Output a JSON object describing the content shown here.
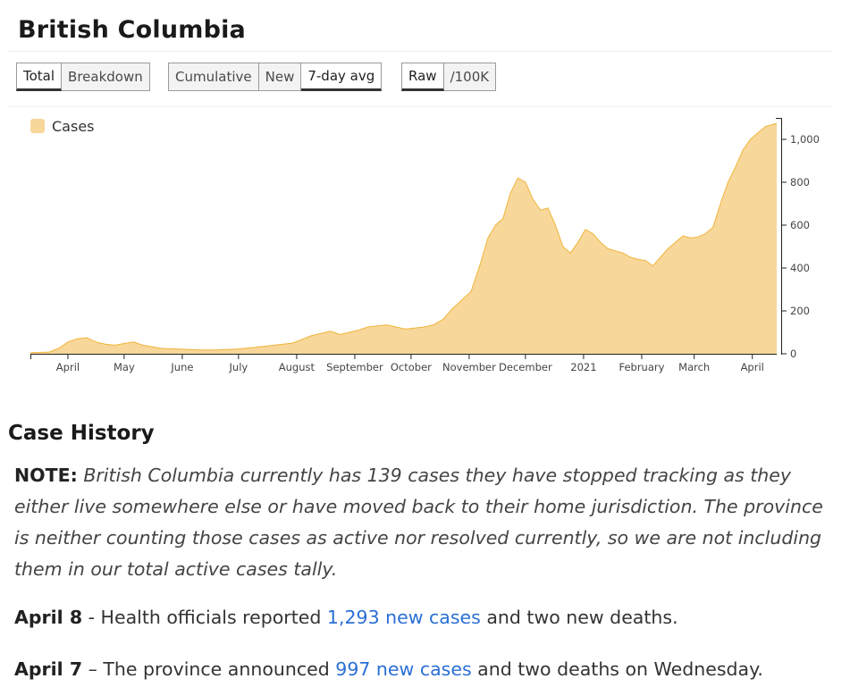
{
  "page_title": "British Columbia",
  "toolbar": {
    "group1": [
      {
        "label": "Total",
        "active": true
      },
      {
        "label": "Breakdown",
        "active": false
      }
    ],
    "group2": [
      {
        "label": "Cumulative",
        "active": false
      },
      {
        "label": "New",
        "active": false
      },
      {
        "label": "7-day avg",
        "active": true
      }
    ],
    "group3": [
      {
        "label": "Raw",
        "active": true
      },
      {
        "label": "/100K",
        "active": false
      }
    ]
  },
  "chart_data": {
    "type": "area",
    "series": [
      {
        "name": "Cases",
        "color": "#f8d79a",
        "stroke": "#f0b43a"
      }
    ],
    "x_tick_labels": [
      "April",
      "May",
      "June",
      "July",
      "August",
      "September",
      "October",
      "November",
      "December",
      "2021",
      "February",
      "March",
      "April"
    ],
    "y_ticks": [
      0,
      200,
      400,
      600,
      800,
      1000
    ],
    "y_tick_labels": [
      "0",
      "200",
      "400",
      "600",
      "800",
      "1,000"
    ],
    "ylim": [
      0,
      1100
    ],
    "y_axis_position": "right",
    "legend_position": "top-left",
    "x_days_since_start": [
      0,
      10,
      15,
      20,
      25,
      30,
      35,
      40,
      45,
      50,
      55,
      60,
      70,
      80,
      90,
      100,
      110,
      120,
      130,
      140,
      150,
      160,
      165,
      170,
      175,
      180,
      190,
      200,
      210,
      215,
      220,
      225,
      230,
      235,
      240,
      244,
      248,
      252,
      256,
      260,
      264,
      268,
      272,
      276,
      280,
      284,
      288,
      292,
      296,
      300,
      304,
      308,
      312,
      316,
      320,
      324,
      328,
      332,
      336,
      340,
      344,
      348,
      352,
      356,
      360,
      364,
      368,
      372,
      376,
      380,
      384,
      388,
      392,
      396,
      398
    ],
    "values": [
      5,
      8,
      25,
      55,
      70,
      75,
      55,
      45,
      40,
      48,
      55,
      40,
      25,
      22,
      18,
      18,
      22,
      30,
      40,
      50,
      85,
      105,
      90,
      100,
      110,
      125,
      135,
      115,
      125,
      135,
      160,
      210,
      250,
      290,
      420,
      540,
      600,
      630,
      750,
      820,
      800,
      720,
      670,
      680,
      600,
      500,
      470,
      520,
      580,
      560,
      520,
      490,
      480,
      470,
      450,
      440,
      435,
      410,
      450,
      490,
      520,
      550,
      540,
      545,
      560,
      590,
      700,
      800,
      870,
      950,
      1000,
      1030,
      1060,
      1070,
      1075
    ],
    "x_tick_days": [
      20,
      50,
      81,
      111,
      142,
      173,
      203,
      234,
      264,
      295,
      326,
      354,
      385
    ]
  },
  "case_history": {
    "title": "Case History",
    "note_label": "NOTE:",
    "note_text": "British Columbia currently has 139 cases they have stopped tracking as they either live somewhere else or have moved back to their home jurisdiction. The province is neither counting those cases as active nor resolved currently, so we are not including them in our total active cases tally.",
    "entries": [
      {
        "date": "April 8",
        "prefix": " - Health officials reported ",
        "link": "1,293 new cases",
        "suffix": " and two new deaths."
      },
      {
        "date": "April 7",
        "prefix": " – The province announced ",
        "link": "997 new cases",
        "suffix": " and two deaths on Wednesday."
      }
    ]
  }
}
